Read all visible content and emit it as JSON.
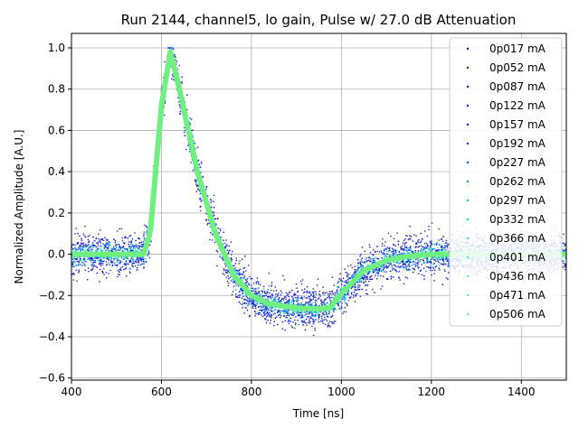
{
  "chart_data": {
    "type": "scatter",
    "title": "Run 2144, channel5, lo gain, Pulse w/ 27.0 dB Attenuation",
    "xlabel": "Time [ns]",
    "ylabel": "Normalized Amplitude [A.U.]",
    "xlim": [
      400,
      1500
    ],
    "ylim": [
      -0.61,
      1.07
    ],
    "xticks": [
      400,
      600,
      800,
      1000,
      1200,
      1400
    ],
    "yticks": [
      -0.6,
      -0.4,
      -0.2,
      0.0,
      0.2,
      0.4,
      0.6,
      0.8,
      1.0
    ],
    "grid": true,
    "legend_position": "top-right",
    "pulse_shape": {
      "description_points_x": [
        400,
        560,
        575,
        600,
        620,
        640,
        680,
        720,
        760,
        800,
        840,
        900,
        950,
        975,
        1000,
        1050,
        1100,
        1150,
        1200,
        1500
      ],
      "description_points_y": [
        0.0,
        0.0,
        0.1,
        0.72,
        0.98,
        0.8,
        0.4,
        0.1,
        -0.1,
        -0.2,
        -0.24,
        -0.26,
        -0.265,
        -0.26,
        -0.19,
        -0.08,
        -0.03,
        -0.01,
        0.0,
        0.0
      ]
    },
    "series": [
      {
        "name": "0p017 mA",
        "color": "#1a1a8a"
      },
      {
        "name": "0p052 mA",
        "color": "#1f1fb0"
      },
      {
        "name": "0p087 mA",
        "color": "#1f1fcc"
      },
      {
        "name": "0p122 mA",
        "color": "#1c1ce0"
      },
      {
        "name": "0p157 mA",
        "color": "#1010f0"
      },
      {
        "name": "0p192 mA",
        "color": "#0030ff"
      },
      {
        "name": "0p227 mA",
        "color": "#0060ff"
      },
      {
        "name": "0p262 mA",
        "color": "#0090ff"
      },
      {
        "name": "0p297 mA",
        "color": "#00c0ff"
      },
      {
        "name": "0p332 mA",
        "color": "#10e0f0"
      },
      {
        "name": "0p366 mA",
        "color": "#30f0d0"
      },
      {
        "name": "0p401 mA",
        "color": "#40f5b0"
      },
      {
        "name": "0p436 mA",
        "color": "#50f5a0"
      },
      {
        "name": "0p471 mA",
        "color": "#60f090"
      },
      {
        "name": "0p506 mA",
        "color": "#70f080"
      }
    ]
  }
}
